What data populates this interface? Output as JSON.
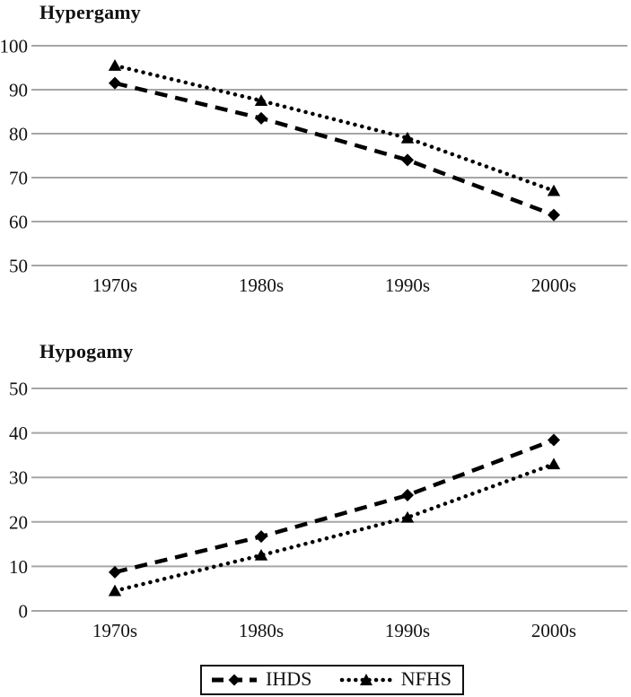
{
  "colors": {
    "series_line": "#000000",
    "gridline": "#a6a6a6",
    "background": "#ffffff",
    "text": "#111111"
  },
  "chart_data": [
    {
      "type": "line",
      "title": "Hypergamy",
      "categories": [
        "1970s",
        "1980s",
        "1990s",
        "2000s"
      ],
      "xlabel": "",
      "ylabel": "",
      "ylim": [
        50,
        100
      ],
      "y_ticks": [
        100,
        90,
        80,
        70,
        60,
        50
      ],
      "grid": "horizontal",
      "legend_position": "shared-bottom",
      "series": [
        {
          "name": "IHDS",
          "line_style": "dashed",
          "marker": "diamond",
          "values": [
            91.5,
            83.5,
            74,
            61.5
          ]
        },
        {
          "name": "NFHS",
          "line_style": "dotted",
          "marker": "triangle",
          "values": [
            95.5,
            87.5,
            79,
            67
          ]
        }
      ]
    },
    {
      "type": "line",
      "title": "Hypogamy",
      "categories": [
        "1970s",
        "1980s",
        "1990s",
        "2000s"
      ],
      "xlabel": "",
      "ylabel": "",
      "ylim": [
        0,
        50
      ],
      "y_ticks": [
        50,
        40,
        30,
        20,
        10,
        0
      ],
      "grid": "horizontal",
      "legend_position": "shared-bottom",
      "series": [
        {
          "name": "IHDS",
          "line_style": "dashed",
          "marker": "diamond",
          "values": [
            8.7,
            16.7,
            26,
            38.4
          ]
        },
        {
          "name": "NFHS",
          "line_style": "dotted",
          "marker": "triangle",
          "values": [
            4.5,
            12.5,
            21,
            33
          ]
        }
      ]
    }
  ],
  "legend": {
    "items": [
      {
        "label": "IHDS",
        "line_style": "dashed",
        "marker": "diamond"
      },
      {
        "label": "NFHS",
        "line_style": "dotted",
        "marker": "triangle"
      }
    ]
  }
}
